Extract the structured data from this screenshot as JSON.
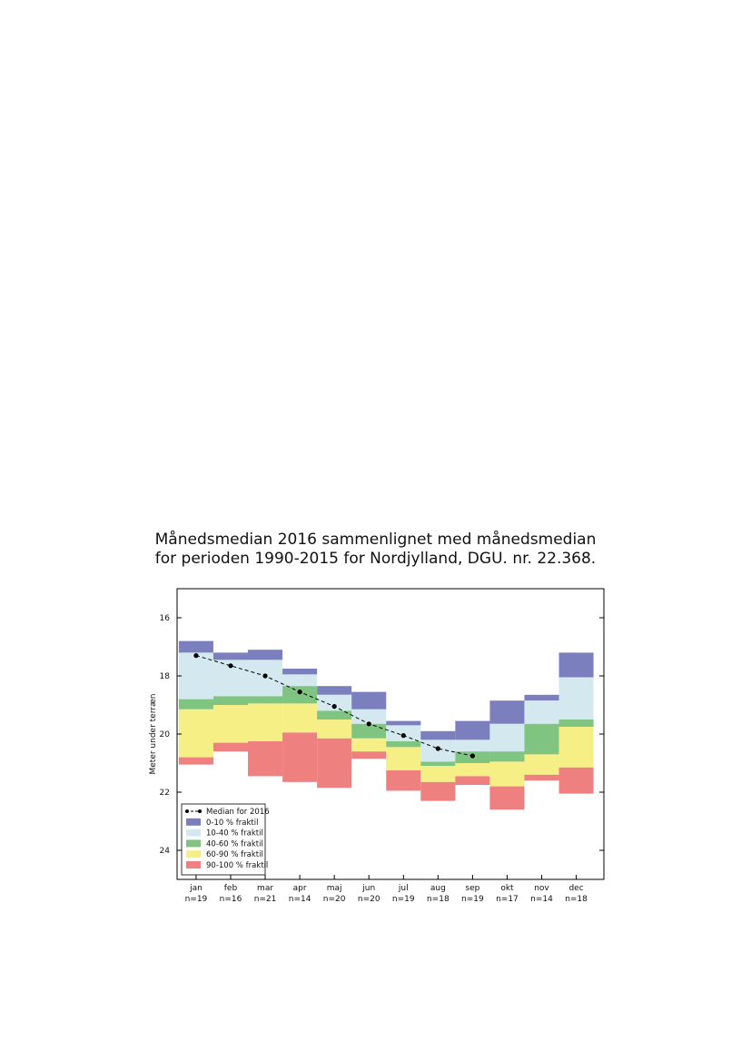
{
  "chart_data": {
    "type": "bar",
    "title_lines": [
      "Månedsmedian 2016 sammenlignet med månedsmedian",
      "for perioden 1990-2015 for Nordjylland, DGU. nr. 22.368."
    ],
    "ylabel": "Meter under terræn",
    "ylim": [
      15,
      25
    ],
    "y_inverted": true,
    "yticks": [
      "16",
      "18",
      "20",
      "22",
      "24"
    ],
    "months": [
      "jan",
      "feb",
      "mar",
      "apr",
      "maj",
      "jun",
      "jul",
      "aug",
      "sep",
      "okt",
      "nov",
      "dec"
    ],
    "n_labels": [
      "n=19",
      "n=16",
      "n=21",
      "n=14",
      "n=20",
      "n=20",
      "n=19",
      "n=18",
      "n=19",
      "n=17",
      "n=14",
      "n=18"
    ],
    "legend_placement": "lower-left",
    "legend": [
      {
        "label": "Median for 2016",
        "color": "#000000"
      },
      {
        "label": "0-10 % fraktil",
        "color": "#7b7fbd"
      },
      {
        "label": "10-40 % fraktil",
        "color": "#d4e8ef"
      },
      {
        "label": "40-60 % fraktil",
        "color": "#7fc480"
      },
      {
        "label": "60-90 % fraktil",
        "color": "#f6ef86"
      },
      {
        "label": "90-100 % fraktil",
        "color": "#ee8080"
      }
    ],
    "fractile_bounds": [
      [
        16.8,
        17.2,
        18.8,
        19.15,
        20.8,
        21.05
      ],
      [
        17.2,
        17.45,
        18.7,
        19.0,
        20.3,
        20.6
      ],
      [
        17.1,
        17.45,
        18.7,
        18.95,
        20.25,
        21.45
      ],
      [
        17.75,
        17.95,
        18.35,
        18.95,
        19.95,
        21.65
      ],
      [
        18.35,
        18.65,
        19.2,
        19.5,
        20.15,
        21.85
      ],
      [
        18.55,
        19.15,
        19.65,
        20.15,
        20.6,
        20.85
      ],
      [
        19.55,
        19.7,
        20.25,
        20.45,
        21.25,
        21.95
      ],
      [
        19.9,
        20.2,
        20.95,
        21.1,
        21.65,
        22.3
      ],
      [
        19.55,
        20.2,
        20.6,
        21.0,
        21.45,
        21.75
      ],
      [
        18.85,
        19.65,
        20.6,
        20.95,
        21.8,
        22.6
      ],
      [
        18.65,
        18.85,
        19.65,
        20.7,
        21.4,
        21.6
      ],
      [
        17.2,
        18.05,
        19.5,
        19.75,
        21.15,
        22.05
      ]
    ],
    "median_2016": [
      17.3,
      17.65,
      18.0,
      18.55,
      19.05,
      19.65,
      20.05,
      20.5,
      20.75,
      null,
      null,
      null
    ]
  }
}
